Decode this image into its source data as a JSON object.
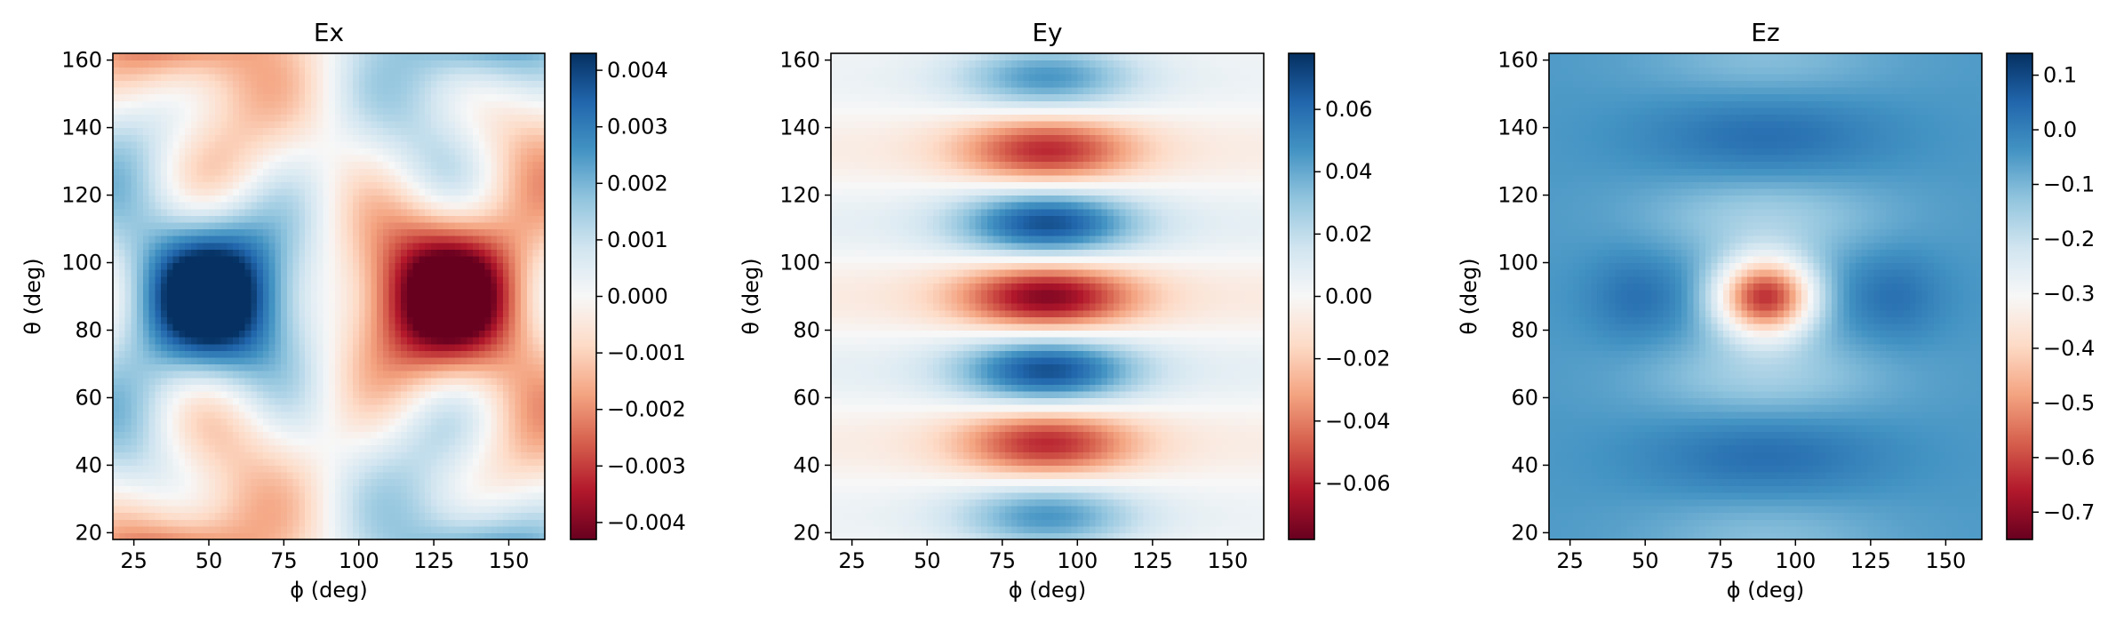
{
  "chart_data": [
    {
      "type": "heatmap",
      "title": "Ex",
      "xlabel": "ϕ (deg)",
      "ylabel": "θ (deg)",
      "xlim": [
        18,
        162
      ],
      "ylim": [
        18,
        162
      ],
      "xticks": [
        "25",
        "50",
        "75",
        "100",
        "125",
        "150"
      ],
      "yticks": [
        "20",
        "40",
        "60",
        "80",
        "100",
        "120",
        "140",
        "160"
      ],
      "colorbar": {
        "colormap": "RdBu",
        "min": -0.0043,
        "max": 0.0043,
        "ticks": [
          {
            "value": 0.004,
            "label": "0.004"
          },
          {
            "value": 0.003,
            "label": "0.003"
          },
          {
            "value": 0.002,
            "label": "0.002"
          },
          {
            "value": 0.001,
            "label": "0.001"
          },
          {
            "value": 0.0,
            "label": "0.000"
          },
          {
            "value": -0.001,
            "label": "−0.001"
          },
          {
            "value": -0.002,
            "label": "−0.002"
          },
          {
            "value": -0.003,
            "label": "−0.003"
          },
          {
            "value": -0.004,
            "label": "−0.004"
          }
        ]
      }
    },
    {
      "type": "heatmap",
      "title": "Ey",
      "xlabel": "ϕ (deg)",
      "ylabel": "θ (deg)",
      "xlim": [
        18,
        162
      ],
      "ylim": [
        18,
        162
      ],
      "xticks": [
        "25",
        "50",
        "75",
        "100",
        "125",
        "150"
      ],
      "yticks": [
        "20",
        "40",
        "60",
        "80",
        "100",
        "120",
        "140",
        "160"
      ],
      "colorbar": {
        "colormap": "RdBu",
        "min": -0.078,
        "max": 0.078,
        "ticks": [
          {
            "value": 0.06,
            "label": "0.06"
          },
          {
            "value": 0.04,
            "label": "0.04"
          },
          {
            "value": 0.02,
            "label": "0.02"
          },
          {
            "value": 0.0,
            "label": "0.00"
          },
          {
            "value": -0.02,
            "label": "−0.02"
          },
          {
            "value": -0.04,
            "label": "−0.04"
          },
          {
            "value": -0.06,
            "label": "−0.06"
          }
        ]
      }
    },
    {
      "type": "heatmap",
      "title": "Ez",
      "xlabel": "ϕ (deg)",
      "ylabel": "θ (deg)",
      "xlim": [
        18,
        162
      ],
      "ylim": [
        18,
        162
      ],
      "xticks": [
        "25",
        "50",
        "75",
        "100",
        "125",
        "150"
      ],
      "yticks": [
        "20",
        "40",
        "60",
        "80",
        "100",
        "120",
        "140",
        "160"
      ],
      "colorbar": {
        "colormap": "RdBu",
        "min": -0.75,
        "max": 0.14,
        "ticks": [
          {
            "value": 0.1,
            "label": "0.1"
          },
          {
            "value": 0.0,
            "label": "0.0"
          },
          {
            "value": -0.1,
            "label": "−0.1"
          },
          {
            "value": -0.2,
            "label": "−0.2"
          },
          {
            "value": -0.3,
            "label": "−0.3"
          },
          {
            "value": -0.4,
            "label": "−0.4"
          },
          {
            "value": -0.5,
            "label": "−0.5"
          },
          {
            "value": -0.6,
            "label": "−0.6"
          },
          {
            "value": -0.7,
            "label": "−0.7"
          }
        ]
      }
    }
  ]
}
